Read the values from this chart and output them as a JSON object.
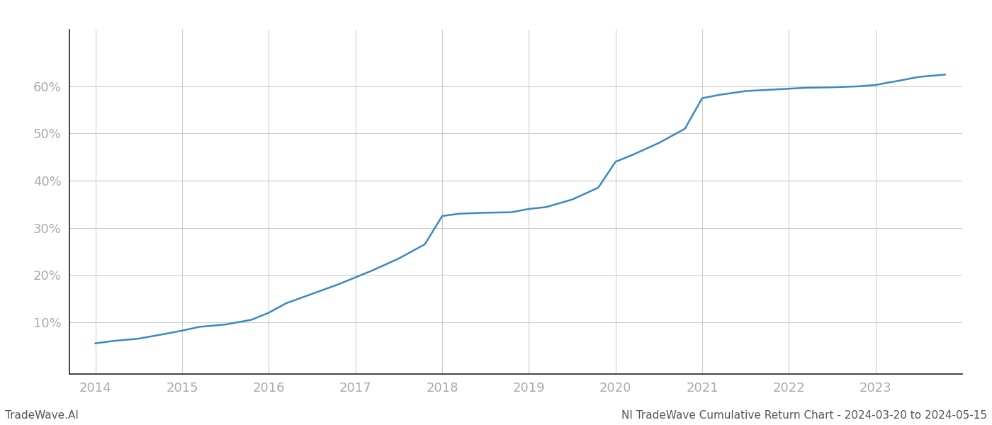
{
  "title": "NI TradeWave Cumulative Return Chart - 2024-03-20 to 2024-05-15",
  "watermark": "TradeWave.AI",
  "line_color": "#3a8abf",
  "background_color": "#ffffff",
  "grid_color": "#cccccc",
  "x_years": [
    2014,
    2015,
    2016,
    2017,
    2018,
    2019,
    2020,
    2021,
    2022,
    2023
  ],
  "data_points": [
    [
      2014.0,
      0.055
    ],
    [
      2014.2,
      0.06
    ],
    [
      2014.5,
      0.065
    ],
    [
      2014.8,
      0.075
    ],
    [
      2015.0,
      0.082
    ],
    [
      2015.2,
      0.09
    ],
    [
      2015.5,
      0.095
    ],
    [
      2015.8,
      0.105
    ],
    [
      2016.0,
      0.12
    ],
    [
      2016.2,
      0.14
    ],
    [
      2016.5,
      0.16
    ],
    [
      2016.8,
      0.18
    ],
    [
      2017.0,
      0.195
    ],
    [
      2017.2,
      0.21
    ],
    [
      2017.5,
      0.235
    ],
    [
      2017.8,
      0.265
    ],
    [
      2018.0,
      0.325
    ],
    [
      2018.2,
      0.33
    ],
    [
      2018.5,
      0.332
    ],
    [
      2018.8,
      0.333
    ],
    [
      2019.0,
      0.34
    ],
    [
      2019.2,
      0.344
    ],
    [
      2019.5,
      0.36
    ],
    [
      2019.8,
      0.385
    ],
    [
      2020.0,
      0.44
    ],
    [
      2020.2,
      0.455
    ],
    [
      2020.5,
      0.48
    ],
    [
      2020.8,
      0.51
    ],
    [
      2021.0,
      0.575
    ],
    [
      2021.2,
      0.582
    ],
    [
      2021.5,
      0.59
    ],
    [
      2021.8,
      0.593
    ],
    [
      2022.0,
      0.595
    ],
    [
      2022.2,
      0.597
    ],
    [
      2022.5,
      0.598
    ],
    [
      2022.8,
      0.6
    ],
    [
      2023.0,
      0.603
    ],
    [
      2023.3,
      0.613
    ],
    [
      2023.5,
      0.62
    ],
    [
      2023.8,
      0.625
    ]
  ],
  "ylim": [
    -0.01,
    0.72
  ],
  "yticks": [
    0.1,
    0.2,
    0.3,
    0.4,
    0.5,
    0.6
  ],
  "xlim": [
    2013.7,
    2024.0
  ],
  "title_fontsize": 11,
  "watermark_fontsize": 11,
  "tick_fontsize": 13,
  "tick_color": "#aaaaaa",
  "left_spine_color": "#222222",
  "bottom_spine_color": "#222222",
  "axis_color": "#cccccc"
}
